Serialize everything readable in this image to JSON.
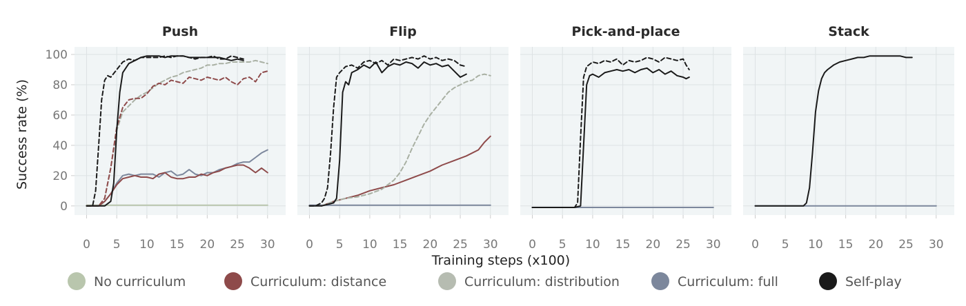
{
  "chart_data": {
    "type": "line",
    "xlabel": "Training steps (x100)",
    "ylabel": "Success rate (%)",
    "xlim": [
      -2,
      33
    ],
    "ylim": [
      -6,
      105
    ],
    "xticks": [
      0,
      5,
      10,
      15,
      20,
      25,
      30
    ],
    "xtick_labels": [
      "0",
      "5",
      "10",
      "15",
      "20",
      "25",
      "30"
    ],
    "yticks": [
      0,
      20,
      40,
      60,
      80,
      100
    ],
    "ytick_labels": [
      "0",
      "20",
      "40",
      "60",
      "80",
      "100"
    ],
    "grid": true,
    "legend_position": "bottom",
    "legend": [
      {
        "label": "No curriculum",
        "color": "#b9c6ad"
      },
      {
        "label": "Curriculum: distance",
        "color": "#8e4a4a"
      },
      {
        "label": "Curriculum: distribution",
        "color": "#a9b0a3"
      },
      {
        "label": "Curriculum: full",
        "color": "#7c879c"
      },
      {
        "label": "Self-play",
        "color": "#1a1a1a"
      }
    ],
    "panels": [
      {
        "title": "Push",
        "series": [
          {
            "name": "No curriculum",
            "color": "#b9c6ad",
            "dash": false,
            "x": [
              0,
              30
            ],
            "y": [
              0.5,
              0.5
            ]
          },
          {
            "name": "Curriculum: full",
            "color": "#7c879c",
            "dash": false,
            "x": [
              0,
              2,
              3,
              4,
              5,
              6,
              7,
              8,
              9,
              10,
              11,
              12,
              13,
              14,
              15,
              16,
              17,
              18,
              19,
              20,
              21,
              22,
              23,
              24,
              25,
              26,
              27,
              28,
              29,
              30
            ],
            "y": [
              0,
              0,
              3,
              8,
              15,
              20,
              21,
              20,
              21,
              21,
              21,
              19,
              22,
              23,
              20,
              21,
              24,
              21,
              20,
              22,
              22,
              24,
              25,
              26,
              28,
              29,
              29,
              32,
              35,
              37
            ]
          },
          {
            "name": "Curriculum: distance",
            "color": "#8e4a4a",
            "dash": false,
            "x": [
              0,
              2,
              3,
              4,
              5,
              6,
              7,
              8,
              9,
              10,
              11,
              12,
              13,
              14,
              15,
              16,
              17,
              18,
              19,
              20,
              21,
              22,
              23,
              24,
              25,
              26,
              27,
              28,
              29,
              30
            ],
            "y": [
              0,
              0,
              3,
              8,
              14,
              18,
              19,
              20,
              19,
              19,
              18,
              21,
              22,
              19,
              18,
              18,
              19,
              19,
              21,
              20,
              22,
              23,
              25,
              26,
              27,
              27,
              25,
              22,
              25,
              22
            ]
          },
          {
            "name": "Curriculum: distribution",
            "color": "#a9b0a3",
            "dash": true,
            "x": [
              0,
              2,
              3,
              4,
              5,
              6,
              7,
              8,
              9,
              10,
              11,
              12,
              13,
              14,
              15,
              16,
              17,
              18,
              19,
              20,
              21,
              22,
              23,
              24,
              25,
              26,
              27,
              28,
              29,
              30
            ],
            "y": [
              0,
              0,
              5,
              25,
              50,
              62,
              66,
              70,
              73,
              75,
              78,
              81,
              83,
              85,
              86,
              88,
              89,
              90,
              91,
              93,
              93,
              94,
              94,
              95,
              95,
              95,
              95,
              96,
              95,
              94
            ]
          },
          {
            "name": "Curriculum: distance",
            "color": "#8e4a4a",
            "dash": true,
            "x": [
              0,
              2,
              3,
              4,
              5,
              6,
              7,
              8,
              9,
              10,
              11,
              12,
              13,
              14,
              15,
              16,
              17,
              18,
              19,
              20,
              21,
              22,
              23,
              24,
              25,
              26,
              27,
              28,
              29,
              30
            ],
            "y": [
              0,
              0,
              5,
              25,
              52,
              65,
              70,
              71,
              71,
              74,
              79,
              81,
              80,
              83,
              82,
              81,
              85,
              84,
              83,
              85,
              84,
              83,
              85,
              82,
              80,
              84,
              85,
              82,
              88,
              89
            ]
          },
          {
            "name": "Self-play",
            "color": "#1a1a1a",
            "dash": true,
            "x": [
              0,
              1,
              1.5,
              2,
              2.5,
              3,
              3.5,
              4,
              5,
              6,
              7,
              8,
              9,
              10,
              11,
              12,
              13,
              14,
              15,
              16,
              17,
              18,
              19,
              20,
              21,
              22,
              23,
              24,
              25,
              26
            ],
            "y": [
              0,
              0,
              10,
              40,
              70,
              83,
              86,
              85,
              90,
              95,
              97,
              96,
              98,
              98,
              98,
              98,
              99,
              98,
              99,
              99,
              98,
              97,
              98,
              98,
              99,
              97,
              97,
              99,
              98,
              97
            ]
          },
          {
            "name": "Self-play",
            "color": "#1a1a1a",
            "dash": false,
            "x": [
              0,
              2,
              3,
              4,
              4.5,
              5,
              5.5,
              6,
              7,
              8,
              9,
              10,
              11,
              12,
              13,
              14,
              15,
              16,
              17,
              18,
              19,
              20,
              21,
              22,
              23,
              24,
              25,
              26
            ],
            "y": [
              0,
              0,
              0,
              3,
              15,
              50,
              75,
              88,
              94,
              96,
              98,
              99,
              99,
              99,
              98,
              99,
              99,
              99,
              98,
              98,
              98,
              98,
              98,
              98,
              97,
              96,
              97,
              96
            ]
          }
        ]
      },
      {
        "title": "Flip",
        "series": [
          {
            "name": "Curriculum: full",
            "color": "#7c879c",
            "dash": false,
            "x": [
              0,
              30
            ],
            "y": [
              0.5,
              0.5
            ]
          },
          {
            "name": "Curriculum: distance",
            "color": "#8e4a4a",
            "dash": false,
            "x": [
              2,
              4,
              6,
              8,
              10,
              12,
              14,
              16,
              18,
              20,
              22,
              24,
              26,
              28,
              29,
              30
            ],
            "y": [
              0,
              3,
              5,
              7,
              10,
              12,
              14,
              17,
              20,
              23,
              27,
              30,
              33,
              37,
              42,
              46
            ]
          },
          {
            "name": "Curriculum: distribution",
            "color": "#a9b0a3",
            "dash": true,
            "x": [
              2,
              4,
              6,
              8,
              10,
              12,
              14,
              15,
              16,
              17,
              18,
              19,
              20,
              21,
              22,
              23,
              24,
              25,
              26,
              27,
              28,
              29,
              30
            ],
            "y": [
              0,
              3,
              5,
              6,
              8,
              11,
              17,
              22,
              29,
              38,
              46,
              54,
              60,
              65,
              70,
              75,
              78,
              80,
              82,
              83,
              86,
              87,
              86
            ]
          },
          {
            "name": "Self-play",
            "color": "#1a1a1a",
            "dash": true,
            "x": [
              0,
              1,
              2,
              2.5,
              3,
              3.5,
              4,
              4.5,
              5,
              6,
              7,
              8,
              9,
              10,
              11,
              12,
              13,
              14,
              15,
              16,
              17,
              18,
              19,
              20,
              21,
              22,
              23,
              24,
              25,
              26
            ],
            "y": [
              0,
              0,
              2,
              5,
              12,
              35,
              65,
              85,
              88,
              92,
              93,
              91,
              95,
              96,
              94,
              96,
              93,
              97,
              96,
              97,
              98,
              97,
              99,
              97,
              98,
              96,
              97,
              96,
              93,
              92
            ]
          },
          {
            "name": "Self-play",
            "color": "#1a1a1a",
            "dash": false,
            "x": [
              0,
              2,
              4,
              4.5,
              5,
              5.5,
              6,
              6.5,
              7,
              8,
              9,
              10,
              11,
              12,
              13,
              14,
              15,
              16,
              17,
              18,
              19,
              20,
              21,
              22,
              23,
              24,
              25,
              26
            ],
            "y": [
              0,
              0,
              2,
              5,
              30,
              75,
              82,
              80,
              88,
              90,
              93,
              91,
              95,
              88,
              92,
              94,
              93,
              95,
              94,
              91,
              95,
              93,
              94,
              92,
              93,
              89,
              85,
              87
            ]
          }
        ]
      },
      {
        "title": "Pick-and-place",
        "series": [
          {
            "name": "Curriculum: full",
            "color": "#7c879c",
            "dash": false,
            "x": [
              0,
              30
            ],
            "y": [
              -1,
              -1
            ]
          },
          {
            "name": "Self-play",
            "color": "#1a1a1a",
            "dash": true,
            "x": [
              0,
              6,
              7,
              7.5,
              8,
              8.5,
              9,
              10,
              11,
              12,
              13,
              14,
              15,
              16,
              17,
              18,
              19,
              20,
              21,
              22,
              23,
              24,
              25,
              25.5,
              26
            ],
            "y": [
              -1,
              -1,
              -1,
              2,
              45,
              85,
              92,
              95,
              94,
              96,
              95,
              97,
              93,
              96,
              95,
              96,
              98,
              97,
              95,
              98,
              97,
              96,
              97,
              93,
              90
            ]
          },
          {
            "name": "Self-play",
            "color": "#1a1a1a",
            "dash": false,
            "x": [
              0,
              7,
              8,
              8.5,
              9,
              9.5,
              10,
              11,
              12,
              13,
              14,
              15,
              16,
              17,
              18,
              19,
              20,
              21,
              22,
              23,
              24,
              25,
              25.5,
              26
            ],
            "y": [
              -1,
              -1,
              0,
              40,
              80,
              86,
              87,
              85,
              88,
              89,
              90,
              89,
              90,
              88,
              90,
              91,
              88,
              90,
              87,
              89,
              86,
              85,
              84,
              85
            ]
          }
        ]
      },
      {
        "title": "Stack",
        "series": [
          {
            "name": "Curriculum: full",
            "color": "#7c879c",
            "dash": false,
            "x": [
              0,
              30
            ],
            "y": [
              0,
              0
            ]
          },
          {
            "name": "Self-play",
            "color": "#1a1a1a",
            "dash": false,
            "x": [
              0,
              8,
              8.5,
              9,
              9.5,
              10,
              10.5,
              11,
              11.5,
              12,
              13,
              14,
              15,
              16,
              17,
              18,
              19,
              20,
              21,
              22,
              23,
              24,
              25,
              26
            ],
            "y": [
              0,
              0,
              2,
              12,
              35,
              62,
              76,
              84,
              88,
              90,
              93,
              95,
              96,
              97,
              98,
              98,
              99,
              99,
              99,
              99,
              99,
              99,
              98,
              98
            ]
          }
        ]
      }
    ]
  }
}
